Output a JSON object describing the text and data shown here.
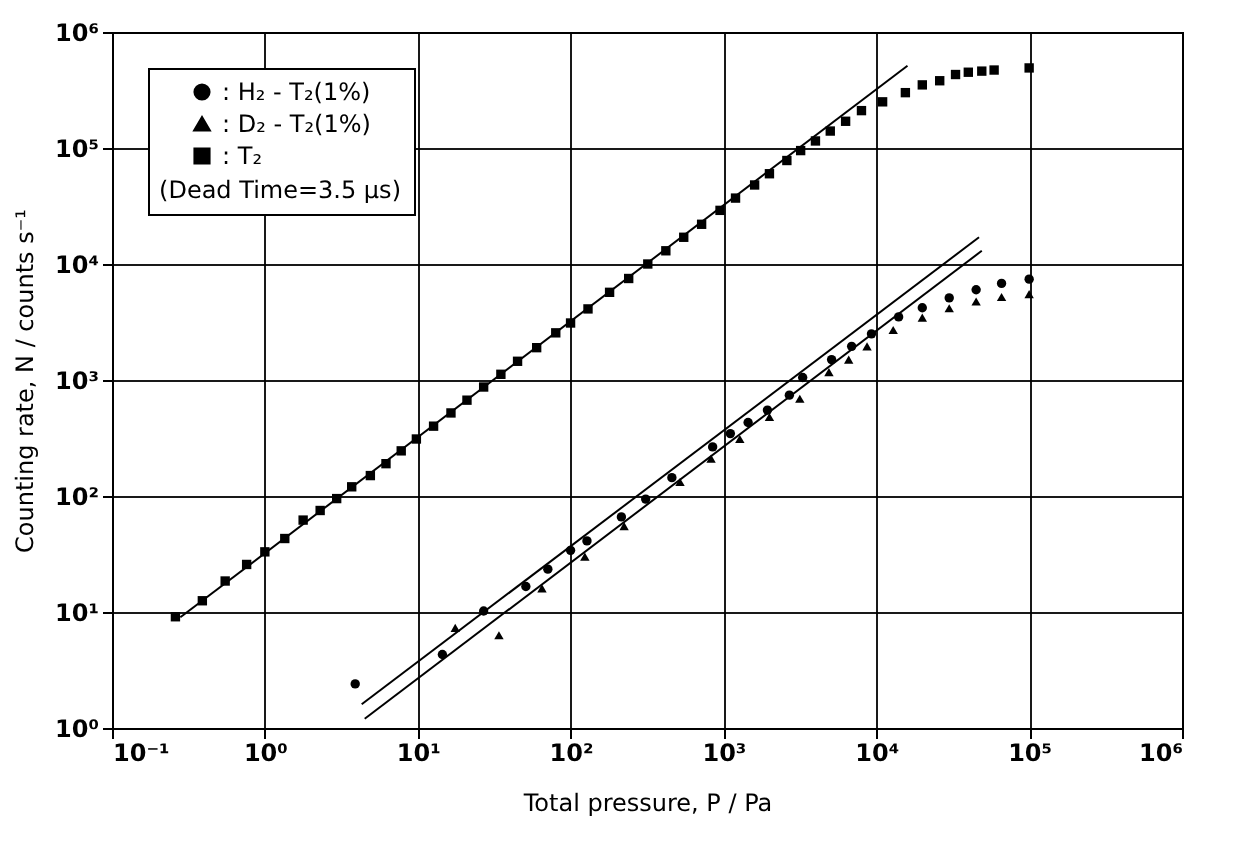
{
  "chart_data": {
    "type": "scatter",
    "xlabel": "Total pressure, P / Pa",
    "ylabel": "Counting rate, N / counts s⁻¹",
    "legend_title": "(Dead Time=3.5 μs)",
    "log": "xy",
    "grid": true,
    "legend": "top left",
    "xlim": [
      0.1,
      1000000
    ],
    "ylim": [
      1,
      1000000
    ],
    "xticks": [
      {
        "value": 0.1,
        "label": "10⁻¹"
      },
      {
        "value": 1,
        "label": "10⁰"
      },
      {
        "value": 10,
        "label": "10¹"
      },
      {
        "value": 100,
        "label": "10²"
      },
      {
        "value": 1000,
        "label": "10³"
      },
      {
        "value": 10000,
        "label": "10⁴"
      },
      {
        "value": 100000,
        "label": "10⁵"
      },
      {
        "value": 1000000,
        "label": "10⁶"
      }
    ],
    "yticks": [
      {
        "value": 1,
        "label": "10⁰"
      },
      {
        "value": 10,
        "label": "10¹"
      },
      {
        "value": 100,
        "label": "10²"
      },
      {
        "value": 1000,
        "label": "10³"
      },
      {
        "value": 10000,
        "label": "10⁴"
      },
      {
        "value": 100000,
        "label": "10⁵"
      },
      {
        "value": 1000000,
        "label": "10⁶"
      }
    ],
    "series": [
      {
        "name": ": H₂ - T₂(1%)",
        "marker": "circle",
        "color": "#000000",
        "x": [
          3.9,
          14.5,
          27,
          51,
          71,
          100,
          128,
          215,
          310,
          460,
          850,
          1110,
          1450,
          1940,
          2700,
          3300,
          5100,
          6900,
          9300,
          14000,
          20000,
          30000,
          45000,
          66000,
          100000
        ],
        "values": [
          2.4,
          4.3,
          10.2,
          16.6,
          23.4,
          34,
          41,
          66,
          94,
          144,
          265,
          345,
          430,
          550,
          740,
          1050,
          1500,
          1950,
          2500,
          3500,
          4200,
          5100,
          6000,
          6800,
          7400
        ]
      },
      {
        "name": ": D₂ - T₂(1%)",
        "marker": "triangle",
        "color": "#000000",
        "x": [
          17.6,
          34,
          65,
          124,
          224,
          520,
          830,
          1280,
          2000,
          3160,
          4900,
          6600,
          8700,
          12900,
          20000,
          30000,
          45000,
          66000,
          100000
        ],
        "values": [
          7.3,
          6.3,
          16,
          30,
          55,
          132,
          210,
          310,
          480,
          690,
          1170,
          1500,
          1950,
          2700,
          3450,
          4150,
          4750,
          5200,
          5500
        ]
      },
      {
        "name": ": T₂",
        "marker": "square",
        "color": "#000000",
        "x": [
          0.26,
          0.39,
          0.55,
          0.76,
          1.0,
          1.35,
          1.78,
          2.3,
          2.95,
          3.7,
          4.9,
          6.2,
          7.8,
          9.8,
          12.7,
          16.5,
          21,
          27,
          35,
          45,
          60,
          80,
          100,
          130,
          180,
          240,
          320,
          420,
          550,
          720,
          950,
          1200,
          1600,
          2000,
          2600,
          3200,
          4000,
          5000,
          6300,
          8000,
          11000,
          15500,
          20000,
          26000,
          33000,
          40000,
          49000,
          59000,
          100000
        ],
        "values": [
          9.1,
          12.5,
          18.5,
          25.7,
          33,
          43,
          62,
          75,
          95,
          120,
          150,
          190,
          245,
          310,
          400,
          520,
          670,
          870,
          1120,
          1450,
          1900,
          2550,
          3100,
          4100,
          5700,
          7500,
          10000,
          13000,
          17000,
          22000,
          29000,
          37000,
          48000,
          60000,
          78000,
          95000,
          115000,
          140000,
          170000,
          210000,
          250000,
          300000,
          350000,
          380000,
          430000,
          450000,
          460000,
          470000,
          490000
        ]
      },
      {
        "type": "line",
        "color": "#000000",
        "x": [
          0.28,
          16000
        ],
        "values": [
          9,
          512000
        ]
      },
      {
        "type": "line",
        "color": "#000000",
        "x": [
          4.3,
          47000
        ],
        "values": [
          1.6,
          17000
        ]
      },
      {
        "type": "line",
        "color": "#000000",
        "x": [
          4.5,
          49000
        ],
        "values": [
          1.2,
          13000
        ]
      }
    ]
  }
}
